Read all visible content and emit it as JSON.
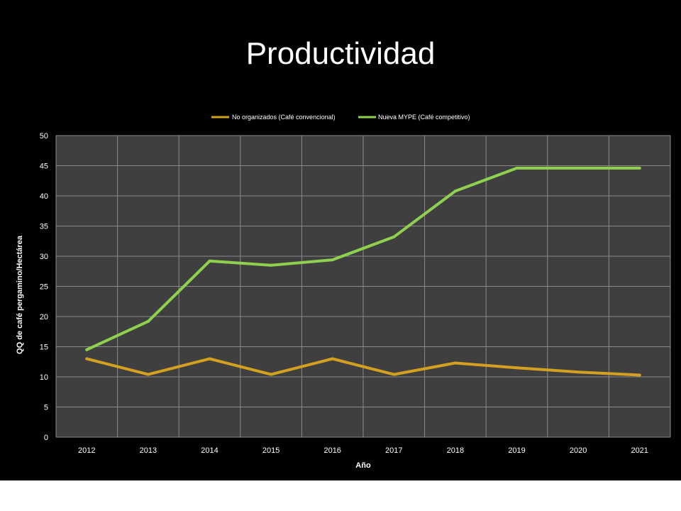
{
  "slide": {
    "title": "Productividad"
  },
  "colors": {
    "background": "#000000",
    "plot_background": "#3f3f3f",
    "grid": "#8a8a8a",
    "series_no_organizados": "#d3a020",
    "series_nueva_mype": "#8fd14f"
  },
  "chart_data": {
    "type": "line",
    "title": "",
    "xlabel": "Año",
    "ylabel": "QQ de café pergamino/Hectárea",
    "categories": [
      "2012",
      "2013",
      "2014",
      "2015",
      "2016",
      "2017",
      "2018",
      "2019",
      "2020",
      "2021"
    ],
    "ylim": [
      0,
      50
    ],
    "yticks": [
      0,
      5,
      10,
      15,
      20,
      25,
      30,
      35,
      40,
      45,
      50
    ],
    "grid": true,
    "legend_position": "top",
    "series": [
      {
        "name": "No organizados (Café convencional)",
        "color": "#d3a020",
        "values": [
          13,
          10.4,
          13,
          10.4,
          13,
          10.4,
          12.3,
          11.5,
          10.8,
          10.3
        ]
      },
      {
        "name": "Nueva MYPE (Café competitivo)",
        "color": "#8fd14f",
        "values": [
          14.5,
          19.2,
          29.2,
          28.5,
          29.4,
          33.2,
          40.8,
          44.6,
          44.6,
          44.6
        ]
      }
    ]
  }
}
